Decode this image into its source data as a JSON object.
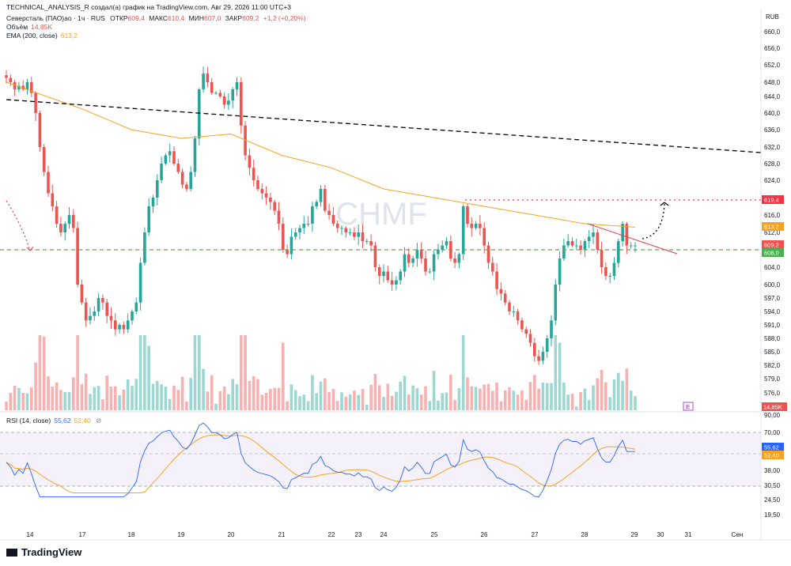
{
  "header": {
    "author": "TECHNICAL_ANALYSIS_R создал(а) график на TradingView.com, Авг 29, 2026 11:00 UTC+3",
    "currency": "RUB"
  },
  "legend": {
    "symbol": "Северсталь (ПАО)ао · 1ч · RUS",
    "open_label": "ОТКР",
    "open_value": "609,4",
    "high_label": "МАКС",
    "high_value": "610,4",
    "low_label": "МИН",
    "low_value": "607,0",
    "close_label": "ЗАКР",
    "close_value": "609,2",
    "change": "+1,2 (+0,20%)",
    "volume_label": "Объём",
    "volume_value": "14,85K",
    "ema_label": "EMA (200, close)",
    "ema_value": "613,2",
    "rsi_label": "RSI (14, close)",
    "rsi_value": "55,62",
    "rsi_ma_value": "52,40"
  },
  "watermark": "CHMF",
  "price_labels": [
    "660,0",
    "656,0",
    "652,0",
    "648,0",
    "644,0",
    "640,0",
    "636,0",
    "632,0",
    "628,0",
    "624,0",
    "620,0",
    "616,0",
    "612,0",
    "608,0",
    "604,0",
    "600,0",
    "597,0",
    "594,0",
    "591,0",
    "588,0",
    "585,0",
    "582,0",
    "579,0",
    "576,0",
    "573,0"
  ],
  "badges": {
    "level": "619,4",
    "ema": "613,2",
    "close": "609,2",
    "support": "608,0",
    "volume": "14,85K",
    "rsi": "55,62",
    "rsi_ma": "52,40",
    "rsi_top": "90,00",
    "event": "E"
  },
  "rsi_labels": [
    "70,00",
    "38,00",
    "30,50",
    "24,50",
    "19,50"
  ],
  "date_labels": [
    "14",
    "17",
    "18",
    "19",
    "20",
    "21",
    "22",
    "23",
    "24",
    "25",
    "26",
    "27",
    "28",
    "29",
    "30",
    "31",
    "Сен"
  ],
  "logo": "TradingView",
  "colors": {
    "up": "#26a69a",
    "down": "#ef5350",
    "ema": "#f7a31f",
    "rsi": "#2962ff",
    "rsi_ma": "#f7a31f",
    "level": "#f23645",
    "support": "#4caf50",
    "trend": "#000000"
  },
  "chart_data": {
    "type": "candlestick",
    "title": "Северсталь (ПАО)ао · 1ч · RUS",
    "y_range": [
      573,
      662
    ],
    "close_approx": [
      649,
      648,
      646,
      647,
      646,
      648,
      645,
      640,
      632,
      626,
      621,
      618,
      614,
      612,
      614,
      616,
      613,
      600,
      596,
      592,
      593,
      594,
      597,
      596,
      593,
      592,
      590,
      591,
      590,
      592,
      594,
      596,
      605,
      612,
      618,
      620,
      624,
      628,
      630,
      631,
      628,
      626,
      623,
      622,
      626,
      634,
      646,
      650,
      648,
      645,
      645,
      644,
      642,
      643,
      646,
      648,
      637,
      630,
      627,
      624,
      622,
      621,
      620,
      619,
      617,
      614,
      608,
      607,
      611,
      612,
      613,
      614,
      614,
      618,
      619,
      622,
      617,
      616,
      614,
      613,
      613,
      612,
      612,
      611,
      612,
      610,
      610,
      609,
      604,
      602,
      603,
      601,
      600,
      601,
      603,
      607,
      605,
      606,
      608,
      606,
      603,
      603,
      607,
      608,
      609,
      610,
      606,
      605,
      607,
      618,
      614,
      613,
      614,
      613,
      609,
      605,
      603,
      599,
      598,
      596,
      594,
      594,
      592,
      590,
      589,
      587,
      584,
      583,
      585,
      588,
      592,
      600,
      606,
      609,
      610,
      609,
      609,
      608,
      610,
      611,
      612,
      608,
      604,
      602,
      602,
      605,
      610,
      614,
      609,
      609,
      609
    ],
    "ema200": [
      {
        "day": "14",
        "value": 648
      },
      {
        "day": "17",
        "value": 641
      },
      {
        "day": "18",
        "value": 636
      },
      {
        "day": "19",
        "value": 634
      },
      {
        "day": "20",
        "value": 635
      },
      {
        "day": "21",
        "value": 630
      },
      {
        "day": "22",
        "value": 627
      },
      {
        "day": "24",
        "value": 622
      },
      {
        "day": "25",
        "value": 620
      },
      {
        "day": "26",
        "value": 618
      },
      {
        "day": "27",
        "value": 616
      },
      {
        "day": "28",
        "value": 614
      },
      {
        "day": "29",
        "value": 613.2
      }
    ],
    "levels": [
      {
        "name": "resistance",
        "value": 619.4,
        "style": "dotted"
      },
      {
        "name": "support",
        "value": 608.0,
        "style": "dashed"
      }
    ],
    "rsi": {
      "range": [
        15,
        90
      ],
      "bands": [
        30,
        70
      ],
      "last": 55.62,
      "ma_last": 52.4
    },
    "x_labels": [
      "14",
      "17",
      "18",
      "19",
      "20",
      "21",
      "22",
      "23",
      "24",
      "25",
      "26",
      "27",
      "28",
      "29",
      "30",
      "31",
      "Сен"
    ]
  }
}
